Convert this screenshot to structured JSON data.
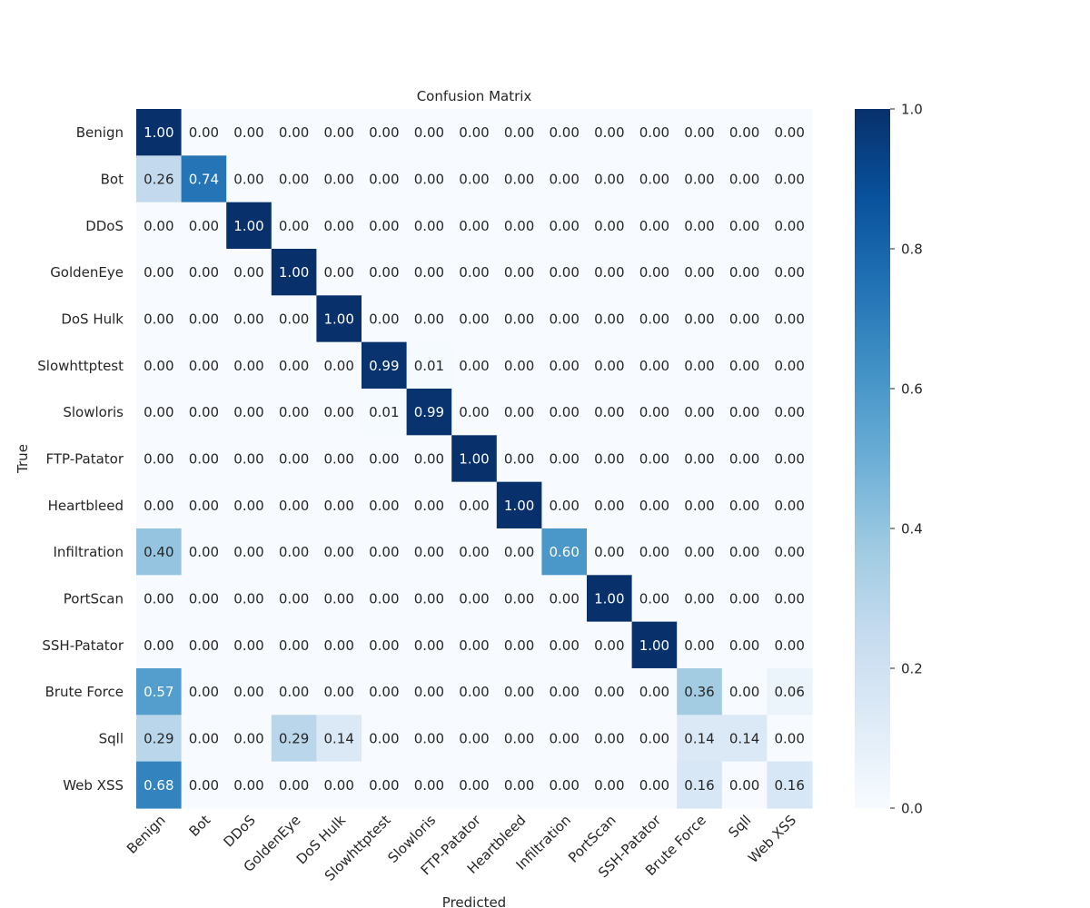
{
  "chart_data": {
    "type": "heatmap",
    "title": "Confusion Matrix",
    "xlabel": "Predicted",
    "ylabel": "True",
    "labels": [
      "Benign",
      "Bot",
      "DDoS",
      "GoldenEye",
      "DoS Hulk",
      "Slowhttptest",
      "Slowloris",
      "FTP-Patator",
      "Heartbleed",
      "Infiltration",
      "PortScan",
      "SSH-Patator",
      "Brute Force",
      "Sqll",
      "Web XSS"
    ],
    "matrix": [
      [
        1.0,
        0.0,
        0.0,
        0.0,
        0.0,
        0.0,
        0.0,
        0.0,
        0.0,
        0.0,
        0.0,
        0.0,
        0.0,
        0.0,
        0.0
      ],
      [
        0.26,
        0.74,
        0.0,
        0.0,
        0.0,
        0.0,
        0.0,
        0.0,
        0.0,
        0.0,
        0.0,
        0.0,
        0.0,
        0.0,
        0.0
      ],
      [
        0.0,
        0.0,
        1.0,
        0.0,
        0.0,
        0.0,
        0.0,
        0.0,
        0.0,
        0.0,
        0.0,
        0.0,
        0.0,
        0.0,
        0.0
      ],
      [
        0.0,
        0.0,
        0.0,
        1.0,
        0.0,
        0.0,
        0.0,
        0.0,
        0.0,
        0.0,
        0.0,
        0.0,
        0.0,
        0.0,
        0.0
      ],
      [
        0.0,
        0.0,
        0.0,
        0.0,
        1.0,
        0.0,
        0.0,
        0.0,
        0.0,
        0.0,
        0.0,
        0.0,
        0.0,
        0.0,
        0.0
      ],
      [
        0.0,
        0.0,
        0.0,
        0.0,
        0.0,
        0.99,
        0.01,
        0.0,
        0.0,
        0.0,
        0.0,
        0.0,
        0.0,
        0.0,
        0.0
      ],
      [
        0.0,
        0.0,
        0.0,
        0.0,
        0.0,
        0.01,
        0.99,
        0.0,
        0.0,
        0.0,
        0.0,
        0.0,
        0.0,
        0.0,
        0.0
      ],
      [
        0.0,
        0.0,
        0.0,
        0.0,
        0.0,
        0.0,
        0.0,
        1.0,
        0.0,
        0.0,
        0.0,
        0.0,
        0.0,
        0.0,
        0.0
      ],
      [
        0.0,
        0.0,
        0.0,
        0.0,
        0.0,
        0.0,
        0.0,
        0.0,
        1.0,
        0.0,
        0.0,
        0.0,
        0.0,
        0.0,
        0.0
      ],
      [
        0.4,
        0.0,
        0.0,
        0.0,
        0.0,
        0.0,
        0.0,
        0.0,
        0.0,
        0.6,
        0.0,
        0.0,
        0.0,
        0.0,
        0.0
      ],
      [
        0.0,
        0.0,
        0.0,
        0.0,
        0.0,
        0.0,
        0.0,
        0.0,
        0.0,
        0.0,
        1.0,
        0.0,
        0.0,
        0.0,
        0.0
      ],
      [
        0.0,
        0.0,
        0.0,
        0.0,
        0.0,
        0.0,
        0.0,
        0.0,
        0.0,
        0.0,
        0.0,
        1.0,
        0.0,
        0.0,
        0.0
      ],
      [
        0.57,
        0.0,
        0.0,
        0.0,
        0.0,
        0.0,
        0.0,
        0.0,
        0.0,
        0.0,
        0.0,
        0.0,
        0.36,
        0.0,
        0.06
      ],
      [
        0.29,
        0.0,
        0.0,
        0.29,
        0.14,
        0.0,
        0.0,
        0.0,
        0.0,
        0.0,
        0.0,
        0.0,
        0.14,
        0.14,
        0.0
      ],
      [
        0.68,
        0.0,
        0.0,
        0.0,
        0.0,
        0.0,
        0.0,
        0.0,
        0.0,
        0.0,
        0.0,
        0.0,
        0.16,
        0.0,
        0.16
      ]
    ],
    "value_format": "0.00",
    "colormap": "Blues",
    "color_range": [
      0.0,
      1.0
    ],
    "colorbar_ticks": [
      0.0,
      0.2,
      0.4,
      0.6,
      0.8,
      1.0
    ],
    "colorbar_tick_labels": [
      "0.0",
      "0.2",
      "0.4",
      "0.6",
      "0.8",
      "1.0"
    ],
    "colors": {
      "low": "#f7fbff",
      "high": "#08306b",
      "text_dark": "#262626",
      "text_light": "#ffffff"
    }
  }
}
